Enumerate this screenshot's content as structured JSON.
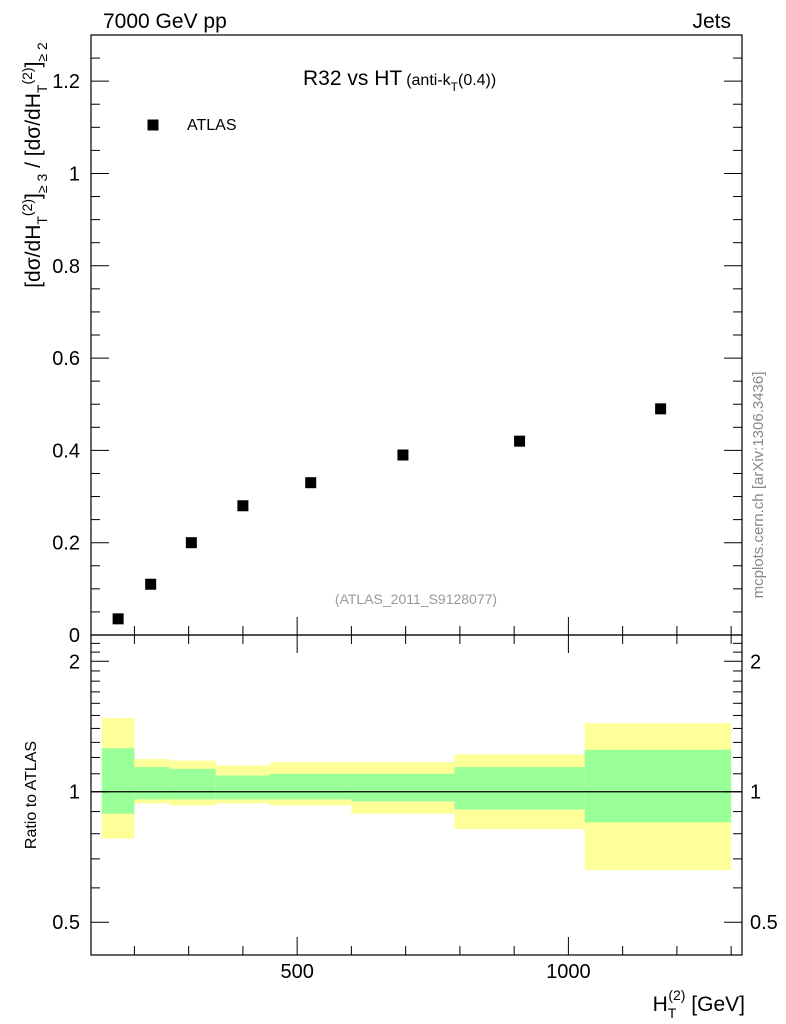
{
  "header": {
    "left": "7000 GeV pp",
    "right": "Jets"
  },
  "side_label": "mcplots.cern.ch [arXiv:1306.3436]",
  "chart_data": [
    {
      "type": "scatter",
      "title": {
        "main": "R32 vs HT",
        "sub_prefix": "(anti-k",
        "sub_index": "T",
        "sub_suffix": "(0.4))"
      },
      "ylabel": {
        "part1": "[dσ/dH",
        "sub1": "T",
        "sup1": "(2)",
        "part2": "]",
        "sub2": "≥ 3",
        "part3": " / [dσ/dH",
        "sub3": "T",
        "sup3": "(2)",
        "part4": "]",
        "sub4": "≥ 2"
      },
      "watermark": "(ATLAS_2011_S9128077)",
      "ylim": [
        0,
        1.3
      ],
      "yticks": [
        0,
        0.2,
        0.4,
        0.6,
        0.8,
        1,
        1.2
      ],
      "ytick_labels": [
        "0",
        "0.2",
        "0.4",
        "0.6",
        "0.8",
        "1",
        "1.2"
      ],
      "legend": {
        "position": "top-left",
        "entries": [
          {
            "label": "ATLAS",
            "marker": "square",
            "color": "#000000"
          }
        ]
      },
      "series": [
        {
          "name": "ATLAS",
          "x": [
            170,
            230,
            305,
            400,
            525,
            695,
            910,
            1170
          ],
          "y": [
            0.035,
            0.11,
            0.2,
            0.28,
            0.33,
            0.39,
            0.42,
            0.49
          ]
        }
      ]
    },
    {
      "type": "area",
      "ylabel": "Ratio to ATLAS",
      "ylim": [
        0.42,
        2.3
      ],
      "log_y": true,
      "yticks": [
        0.5,
        1,
        2
      ],
      "ytick_labels": [
        "0.5",
        "1",
        "2"
      ],
      "xlim": [
        120,
        1320
      ],
      "xticks": [
        500,
        1000
      ],
      "xtick_labels": [
        "500",
        "1000"
      ],
      "xlabel": {
        "main": "H",
        "sub": "T",
        "sup": "(2)",
        "unit": " [GeV]"
      },
      "reference_line": 1.0,
      "bands": [
        {
          "x0": 140,
          "x1": 200,
          "inner": [
            0.89,
            1.26
          ],
          "outer": [
            0.78,
            1.48
          ]
        },
        {
          "x0": 200,
          "x1": 265,
          "inner": [
            0.96,
            1.14
          ],
          "outer": [
            0.94,
            1.19
          ]
        },
        {
          "x0": 265,
          "x1": 350,
          "inner": [
            0.96,
            1.13
          ],
          "outer": [
            0.93,
            1.18
          ]
        },
        {
          "x0": 350,
          "x1": 450,
          "inner": [
            0.96,
            1.09
          ],
          "outer": [
            0.94,
            1.15
          ]
        },
        {
          "x0": 450,
          "x1": 600,
          "inner": [
            0.96,
            1.1
          ],
          "outer": [
            0.93,
            1.17
          ]
        },
        {
          "x0": 600,
          "x1": 790,
          "inner": [
            0.95,
            1.1
          ],
          "outer": [
            0.89,
            1.17
          ]
        },
        {
          "x0": 790,
          "x1": 1030,
          "inner": [
            0.91,
            1.14
          ],
          "outer": [
            0.82,
            1.22
          ]
        },
        {
          "x0": 1030,
          "x1": 1300,
          "inner": [
            0.85,
            1.25
          ],
          "outer": [
            0.66,
            1.44
          ]
        }
      ],
      "colors": {
        "inner": "#99ff99",
        "outer": "#ffff99",
        "line": "#000000"
      }
    }
  ]
}
